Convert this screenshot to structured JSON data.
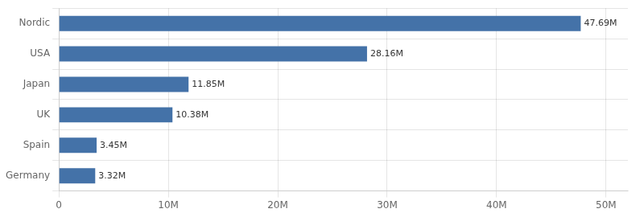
{
  "chart_data": {
    "type": "bar",
    "orientation": "horizontal",
    "categories": [
      "Germany",
      "Spain",
      "UK",
      "Japan",
      "USA",
      "Nordic"
    ],
    "values": [
      3.32,
      3.45,
      10.38,
      11.85,
      28.16,
      47.69
    ],
    "value_labels": [
      "3.32M",
      "3.45M",
      "10.38M",
      "11.85M",
      "28.16M",
      "47.69M"
    ],
    "data_labels": true,
    "color": "#4472a8",
    "xlim": [
      0,
      52
    ],
    "xticks": [
      0,
      {
        "value": 10,
        "label": "10M"
      },
      {
        "value": 20,
        "label": "20M"
      },
      {
        "value": 30,
        "label": "30M"
      },
      {
        "value": 40,
        "label": "40M"
      },
      {
        "value": 50,
        "label": "50M"
      }
    ],
    "grid": true
  }
}
